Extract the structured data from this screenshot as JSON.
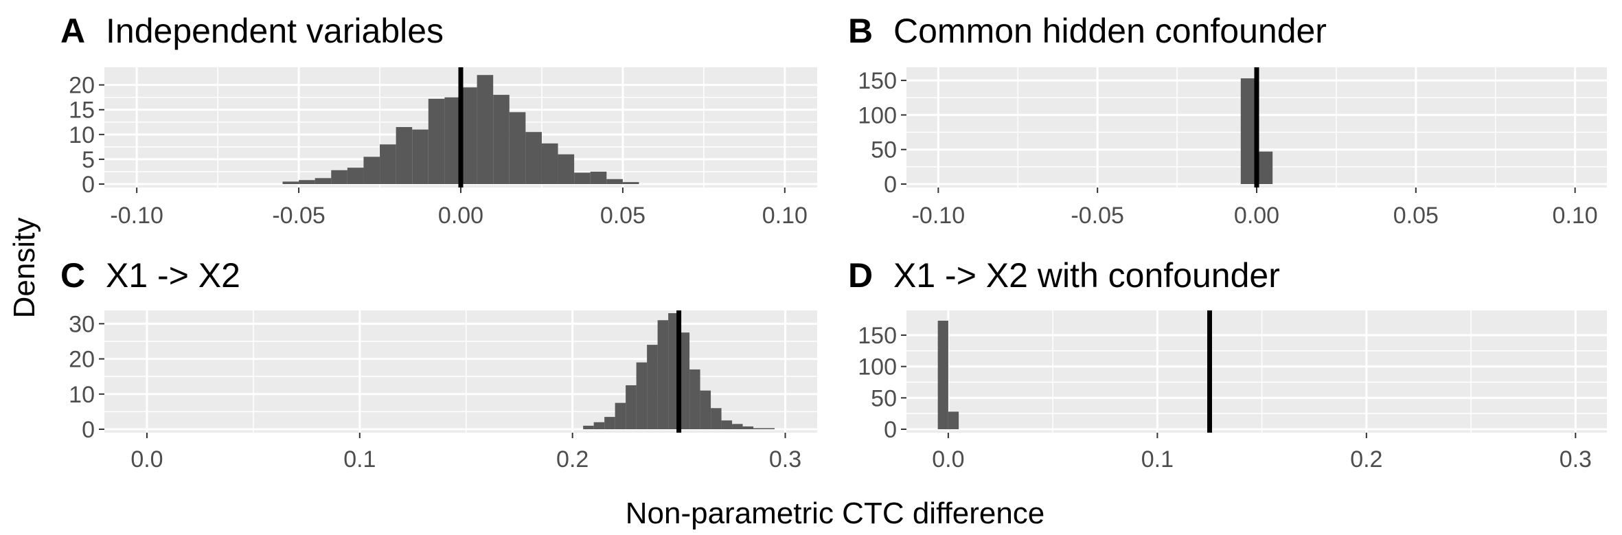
{
  "colors": {
    "panel_background": "#ebebeb",
    "grid": "#ffffff",
    "bar_fill": "#595959",
    "reference_line": "#000000",
    "tick_label": "#4d4d4d",
    "text": "#000000"
  },
  "labels": {
    "y_axis_title": "Density",
    "x_axis_title": "Non-parametric CTC difference"
  },
  "chart_data": [
    {
      "type": "bar",
      "letter": "A",
      "title": "Independent variables",
      "xlim": [
        -0.11,
        0.11
      ],
      "ylim": [
        0,
        23
      ],
      "x_ticks": [
        -0.1,
        -0.05,
        0.0,
        0.05,
        0.1
      ],
      "x_tick_labels": [
        "-0.10",
        "-0.05",
        "0.00",
        "0.05",
        "0.10"
      ],
      "y_ticks": [
        0,
        5,
        10,
        15,
        20
      ],
      "y_tick_labels": [
        "0",
        "5",
        "10",
        "15",
        "20"
      ],
      "bin_width": 0.005,
      "bin_starts": [
        -0.055,
        -0.05,
        -0.045,
        -0.04,
        -0.035,
        -0.03,
        -0.025,
        -0.02,
        -0.015,
        -0.01,
        -0.005,
        0.0,
        0.005,
        0.01,
        0.015,
        0.02,
        0.025,
        0.03,
        0.035,
        0.04,
        0.045,
        0.05
      ],
      "values": [
        0.5,
        0.8,
        1.2,
        2.8,
        3.3,
        5.5,
        8.0,
        11.5,
        11.0,
        17.2,
        17.5,
        19.5,
        22.0,
        18.0,
        14.5,
        10.5,
        8.2,
        6.0,
        2.3,
        2.5,
        1.0,
        0.4
      ],
      "reference_line": 0.0
    },
    {
      "type": "bar",
      "letter": "B",
      "title": "Common hidden confounder",
      "xlim": [
        -0.11,
        0.11
      ],
      "ylim": [
        0,
        165
      ],
      "x_ticks": [
        -0.1,
        -0.05,
        0.0,
        0.05,
        0.1
      ],
      "x_tick_labels": [
        "-0.10",
        "-0.05",
        "0.00",
        "0.05",
        "0.10"
      ],
      "y_ticks": [
        0,
        50,
        100,
        150
      ],
      "y_tick_labels": [
        "0",
        "50",
        "100",
        "150"
      ],
      "bin_width": 0.005,
      "bin_starts": [
        -0.005,
        0.0
      ],
      "values": [
        153,
        47
      ],
      "reference_line": 0.0
    },
    {
      "type": "bar",
      "letter": "C",
      "title": "X1 -> X2",
      "xlim": [
        -0.02,
        0.315
      ],
      "ylim": [
        0,
        33
      ],
      "x_ticks": [
        0.0,
        0.1,
        0.2,
        0.3
      ],
      "x_tick_labels": [
        "0.0",
        "0.1",
        "0.2",
        "0.3"
      ],
      "y_ticks": [
        0,
        10,
        20,
        30
      ],
      "y_tick_labels": [
        "0",
        "10",
        "20",
        "30"
      ],
      "bin_width": 0.005,
      "bin_starts": [
        0.205,
        0.21,
        0.215,
        0.22,
        0.225,
        0.23,
        0.235,
        0.24,
        0.245,
        0.25,
        0.255,
        0.26,
        0.265,
        0.27,
        0.275,
        0.28,
        0.285,
        0.29
      ],
      "values": [
        1.0,
        2.0,
        3.5,
        7.5,
        12.5,
        19.0,
        24.0,
        31.0,
        33.0,
        27.5,
        17.0,
        11.0,
        6.0,
        2.5,
        1.5,
        0.8,
        0.3,
        0.3
      ],
      "reference_line": 0.25
    },
    {
      "type": "bar",
      "letter": "D",
      "title": "X1 -> X2 with confounder",
      "xlim": [
        -0.02,
        0.315
      ],
      "ylim": [
        0,
        185
      ],
      "x_ticks": [
        0.0,
        0.1,
        0.2,
        0.3
      ],
      "x_tick_labels": [
        "0.0",
        "0.1",
        "0.2",
        "0.3"
      ],
      "y_ticks": [
        0,
        50,
        100,
        150
      ],
      "y_tick_labels": [
        "0",
        "50",
        "100",
        "150"
      ],
      "bin_width": 0.005,
      "bin_starts": [
        -0.005,
        0.0
      ],
      "values": [
        173,
        28
      ],
      "reference_line": 0.125
    }
  ]
}
